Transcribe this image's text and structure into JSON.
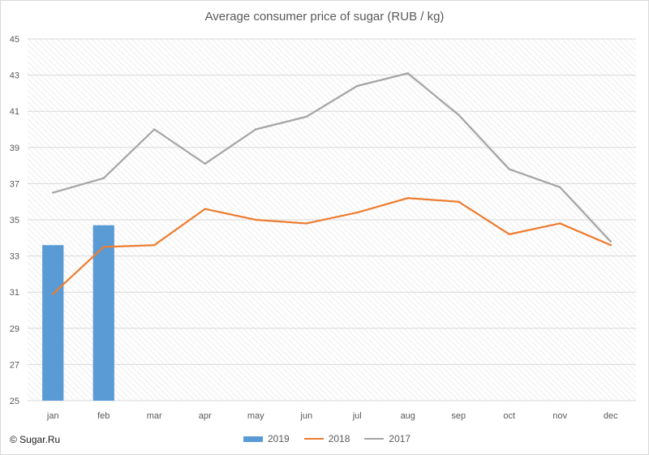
{
  "chart_data": {
    "type": "bar+line",
    "title": "Average consumer price of sugar (RUB / kg)",
    "categories": [
      "jan",
      "feb",
      "mar",
      "apr",
      "may",
      "jun",
      "jul",
      "aug",
      "sep",
      "oct",
      "nov",
      "dec"
    ],
    "ylim": [
      25,
      45
    ],
    "yticks": [
      25,
      27,
      29,
      31,
      33,
      35,
      37,
      39,
      41,
      43,
      45
    ],
    "grid": true,
    "legend_position": "bottom",
    "series": [
      {
        "name": "2019",
        "type": "bar",
        "color": "#5b9bd5",
        "values": [
          33.6,
          34.7,
          null,
          null,
          null,
          null,
          null,
          null,
          null,
          null,
          null,
          null
        ]
      },
      {
        "name": "2018",
        "type": "line",
        "color": "#ed7d31",
        "values": [
          30.9,
          33.5,
          33.6,
          35.6,
          35.0,
          34.8,
          35.4,
          36.2,
          36.0,
          34.2,
          34.8,
          33.6
        ]
      },
      {
        "name": "2017",
        "type": "line",
        "color": "#a5a5a5",
        "values": [
          36.5,
          37.3,
          40.0,
          38.1,
          40.0,
          40.7,
          42.4,
          43.1,
          40.8,
          37.8,
          36.8,
          33.8
        ]
      }
    ]
  },
  "watermark": "© Sugar.Ru"
}
